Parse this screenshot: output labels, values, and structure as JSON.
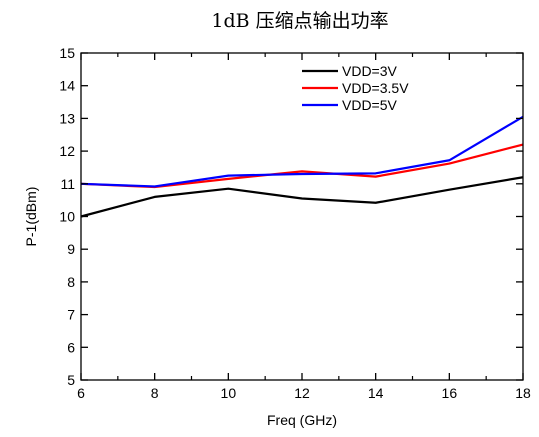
{
  "chart_data": {
    "type": "line",
    "title": "1dB 压缩点输出功率",
    "xlabel": "Freq (GHz)",
    "ylabel": "P-1(dBm)",
    "xlim": [
      6,
      18
    ],
    "ylim": [
      5,
      15
    ],
    "x_ticks": [
      6,
      8,
      10,
      12,
      14,
      16,
      18
    ],
    "y_ticks": [
      5,
      6,
      7,
      8,
      9,
      10,
      11,
      12,
      13,
      14,
      15
    ],
    "grid": false,
    "legend_position": "top-right",
    "x": [
      6,
      8,
      10,
      12,
      14,
      16,
      18
    ],
    "series": [
      {
        "name": "VDD=3V",
        "color": "#000000",
        "values": [
          10.0,
          10.6,
          10.85,
          10.55,
          10.42,
          10.82,
          11.2
        ]
      },
      {
        "name": "VDD=3.5V",
        "color": "#ff0000",
        "values": [
          11.0,
          10.9,
          11.15,
          11.38,
          11.22,
          11.62,
          12.2
        ]
      },
      {
        "name": "VDD=5V",
        "color": "#0000ff",
        "values": [
          11.0,
          10.92,
          11.25,
          11.3,
          11.32,
          11.72,
          13.05
        ]
      }
    ]
  }
}
